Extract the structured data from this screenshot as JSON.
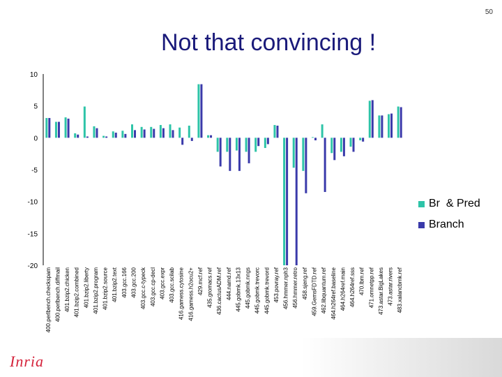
{
  "slide": {
    "number": "50",
    "title": "Not that convincing !",
    "logo_text": "Inria"
  },
  "chart_data": {
    "type": "bar",
    "ylim": [
      -20,
      10
    ],
    "yticks": [
      10,
      5,
      0,
      -5,
      -10,
      -15,
      -20
    ],
    "grid": false,
    "legend_position": "right",
    "categories": [
      "400.perlbench.checkspam",
      "400.perlbench.diffmail",
      "401.bzip2.chicken",
      "401.bzip2.combined",
      "401.bzip2.liberty",
      "401.bzip2.program",
      "401.bzip2.source",
      "401.bzip2.text",
      "403.gcc.166",
      "403.gcc.200",
      "403.gcc.c-typeck",
      "403.gcc.cp-decl",
      "403.gcc.expr",
      "403.gcc.scilab",
      "416.gamess.cytosine",
      "416.gamess.h2ocu2+",
      "429.mcf.ref",
      "435.gromacs.ref",
      "436.cactusADM.ref",
      "444.namd.ref",
      "445.gobmk.13x13",
      "445.gobmk.nngs",
      "445.gobmk.trevorc",
      "445.gobmk.trevord",
      "453.povray.ref",
      "456.hmmer.nph3",
      "456.hmmer.retro",
      "458.sjeng.ref",
      "459.GemsFDTD.ref",
      "462.libquantum.ref",
      "464.h264ref.baseline",
      "464.h264ref.main",
      "464.h264ref.sss",
      "470.lbm.ref",
      "471.omnetpp.ref",
      "473.astar.BigLakes",
      "473.astar.rivers",
      "483.xalancbmk.ref"
    ],
    "series": [
      {
        "name": "Br  & Pred",
        "color": "#2ec4a8",
        "values": [
          3.1,
          2.5,
          3.2,
          0.7,
          4.9,
          1.8,
          0.3,
          1.0,
          1.1,
          2.1,
          1.7,
          1.7,
          2.0,
          2.1,
          1.6,
          1.9,
          8.4,
          0.4,
          -2.2,
          -2.2,
          -2.0,
          -2.2,
          -2.2,
          -1.6,
          2.0,
          -20,
          -4.7,
          -5.2,
          0.1,
          2.1,
          -2.4,
          -2.2,
          -1.4,
          -0.4,
          5.8,
          3.5,
          3.7,
          4.9
        ]
      },
      {
        "name": "Branch",
        "color": "#3a3aaa",
        "values": [
          3.1,
          2.5,
          3.0,
          0.5,
          0.2,
          1.5,
          0.2,
          0.8,
          0.6,
          1.2,
          1.3,
          1.4,
          1.5,
          1.2,
          -1.1,
          -0.5,
          8.4,
          0.4,
          -4.5,
          -5.2,
          -5.2,
          -4.0,
          -1.3,
          -1.0,
          1.9,
          -20,
          -20,
          -8.7,
          -0.4,
          -8.5,
          -3.5,
          -2.9,
          -2.2,
          -0.6,
          5.9,
          3.5,
          3.8,
          4.8
        ]
      }
    ]
  }
}
